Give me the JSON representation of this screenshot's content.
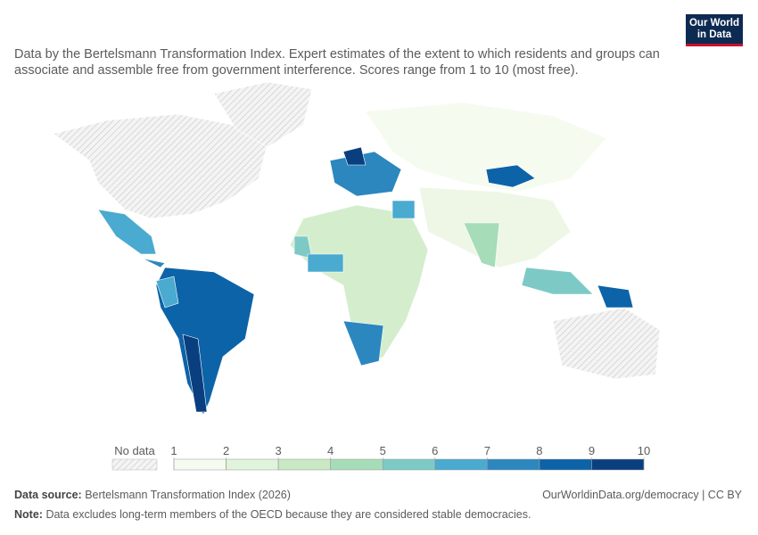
{
  "logo": [
    "Our World",
    "in Data"
  ],
  "subtitle": "Data by the Bertelsmann Transformation Index. Expert estimates of the extent to which residents and groups can associate and assemble free from government interference. Scores range from 1 to 10 (most free).",
  "legend": {
    "no_data": "No data",
    "ticks": [
      1,
      2,
      3,
      4,
      5,
      6,
      7,
      8,
      9,
      10
    ],
    "colors": [
      "#f5fbee",
      "#e0f3db",
      "#c8e9c3",
      "#a6dcb8",
      "#7dc9c6",
      "#4aaad0",
      "#2b87be",
      "#0c63a8",
      "#0a3f7f"
    ]
  },
  "footer": {
    "source_label": "Data source:",
    "source": "Bertelsmann Transformation Index (2026)",
    "url": "OurWorldinData.org/democracy | CC BY",
    "note_label": "Note:",
    "note": "Data excludes long-term members of the OECD because they are considered stable democracies."
  }
}
